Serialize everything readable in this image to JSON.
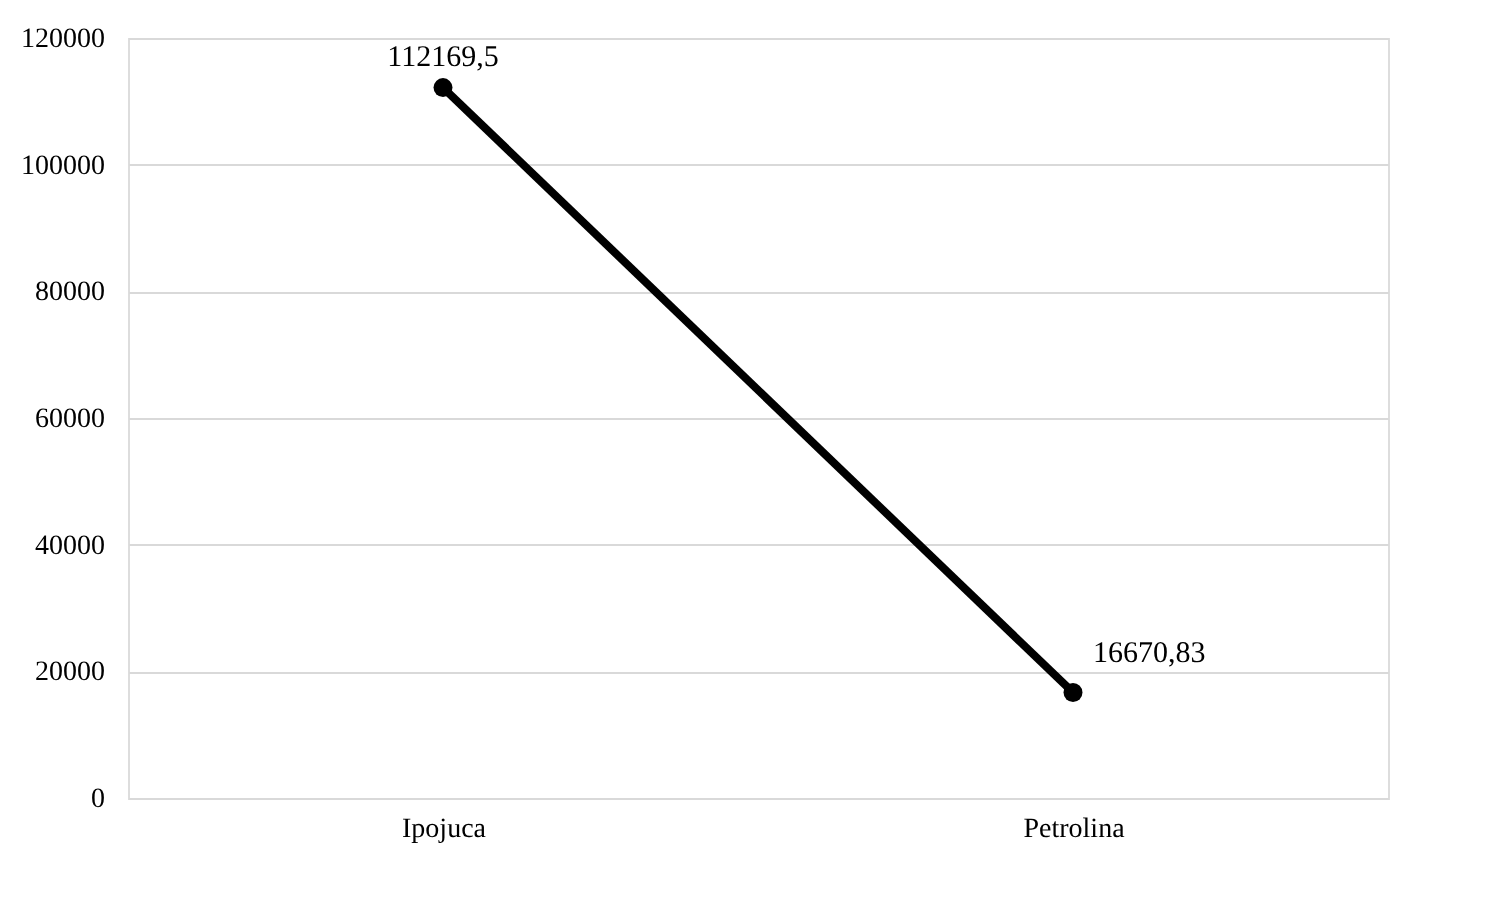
{
  "chart_data": {
    "type": "line",
    "categories": [
      "Ipojuca",
      "Petrolina"
    ],
    "series": [
      {
        "color": "#000000",
        "values": [
          112169.5,
          16670.83
        ],
        "value_labels": [
          "112169,5",
          "16670,83"
        ]
      }
    ],
    "ylim": [
      0,
      120000
    ],
    "yticks": [
      0,
      20000,
      40000,
      60000,
      80000,
      100000,
      120000
    ],
    "grid": "y",
    "marker": "circle",
    "line_style": "solid",
    "legend": false
  }
}
